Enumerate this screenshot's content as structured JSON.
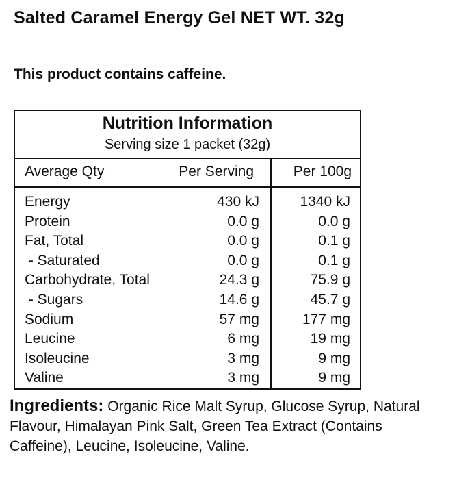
{
  "header": {
    "title": "Salted Caramel Energy Gel  NET WT. 32g",
    "caffeine_notice": "This product contains caffeine."
  },
  "nutrition": {
    "heading": "Nutrition Information",
    "serving_size": "Serving size 1 packet (32g)",
    "columns": {
      "qty": "Average Qty",
      "per_serving": "Per Serving",
      "per_100g": "Per 100g"
    },
    "rows": [
      {
        "name": "Energy",
        "per_serving": "430 kJ",
        "per_100g": "1340 kJ"
      },
      {
        "name": "Protein",
        "per_serving": "0.0 g",
        "per_100g": "0.0 g"
      },
      {
        "name": "Fat, Total",
        "per_serving": "0.0 g",
        "per_100g": "0.1 g"
      },
      {
        "name": " - Saturated",
        "per_serving": "0.0 g",
        "per_100g": "0.1 g"
      },
      {
        "name": "Carbohydrate, Total",
        "per_serving": "24.3 g",
        "per_100g": "75.9 g"
      },
      {
        "name": " - Sugars",
        "per_serving": "14.6 g",
        "per_100g": "45.7 g"
      },
      {
        "name": "Sodium",
        "per_serving": "57 mg",
        "per_100g": "177 mg"
      },
      {
        "name": "Leucine",
        "per_serving": "6 mg",
        "per_100g": "19 mg"
      },
      {
        "name": "Isoleucine",
        "per_serving": "3 mg",
        "per_100g": "9 mg"
      },
      {
        "name": "Valine",
        "per_serving": "3 mg",
        "per_100g": "9 mg"
      }
    ]
  },
  "ingredients": {
    "label": "Ingredients:",
    "text": "Organic Rice Malt Syrup, Glucose Syrup, Natural Flavour, Himalayan Pink Salt, Green Tea Extract (Contains Caffeine), Leucine, Isoleucine, Valine."
  }
}
